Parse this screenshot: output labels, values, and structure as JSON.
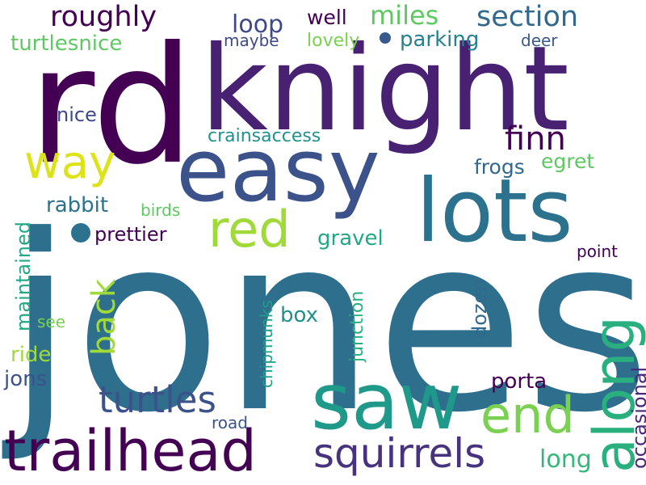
{
  "cloud": {
    "words": [
      {
        "text": "jones",
        "color": "#2e6f8e"
      },
      {
        "text": "rd",
        "color": "#440154"
      },
      {
        "text": "knight",
        "color": "#482173"
      },
      {
        "text": "easy",
        "color": "#3b528b"
      },
      {
        "text": "lots",
        "color": "#2c728e"
      },
      {
        "text": "saw",
        "color": "#1f9a8a"
      },
      {
        "text": "trailhead",
        "color": "#440154"
      },
      {
        "text": "along",
        "color": "#2ab07f"
      },
      {
        "text": "end",
        "color": "#7ad151"
      },
      {
        "text": "way",
        "color": "#dde318"
      },
      {
        "text": "red",
        "color": "#a0da39"
      },
      {
        "text": "squirrels",
        "color": "#46327e"
      },
      {
        "text": "turtles",
        "color": "#3b528b"
      },
      {
        "text": "finn",
        "color": "#440154"
      },
      {
        "text": "back",
        "color": "#a0da39"
      },
      {
        "text": "section",
        "color": "#31688e"
      },
      {
        "text": "miles",
        "color": "#5ec962"
      },
      {
        "text": "roughly",
        "color": "#440154"
      },
      {
        "text": "loop",
        "color": "#3e4989"
      },
      {
        "text": "parking",
        "color": "#26828e"
      },
      {
        "text": "well",
        "color": "#440154"
      },
      {
        "text": "lovely",
        "color": "#7ad151"
      },
      {
        "text": "maybe",
        "color": "#3e4989"
      },
      {
        "text": "deer",
        "color": "#38598c"
      },
      {
        "text": "turtlesnice",
        "color": "#5ec962"
      },
      {
        "text": "nice",
        "color": "#3e4989"
      },
      {
        "text": "crainsaccess",
        "color": "#21918c"
      },
      {
        "text": "egret",
        "color": "#5ec962"
      },
      {
        "text": "frogs",
        "color": "#31688e"
      },
      {
        "text": "rabbit",
        "color": "#2c728e"
      },
      {
        "text": "birds",
        "color": "#5ec962"
      },
      {
        "text": "prettier",
        "color": "#440154"
      },
      {
        "text": "gravel",
        "color": "#22a884"
      },
      {
        "text": "point",
        "color": "#440154"
      },
      {
        "text": "maintained",
        "color": "#22a884"
      },
      {
        "text": "chipmunks",
        "color": "#1f9e89"
      },
      {
        "text": "junction",
        "color": "#2ab07f"
      },
      {
        "text": "dozen",
        "color": "#31688e"
      },
      {
        "text": "occasional",
        "color": "#482878"
      },
      {
        "text": "box",
        "color": "#21918c"
      },
      {
        "text": "see",
        "color": "#7ad151"
      },
      {
        "text": "ride",
        "color": "#a0da39"
      },
      {
        "text": "jons",
        "color": "#3b528b"
      },
      {
        "text": "porta",
        "color": "#440154"
      },
      {
        "text": "road",
        "color": "#3b528b"
      },
      {
        "text": "long",
        "color": "#35b779"
      }
    ],
    "dots": [
      {
        "color": "#38598c"
      },
      {
        "color": "#2c728e"
      }
    ]
  }
}
